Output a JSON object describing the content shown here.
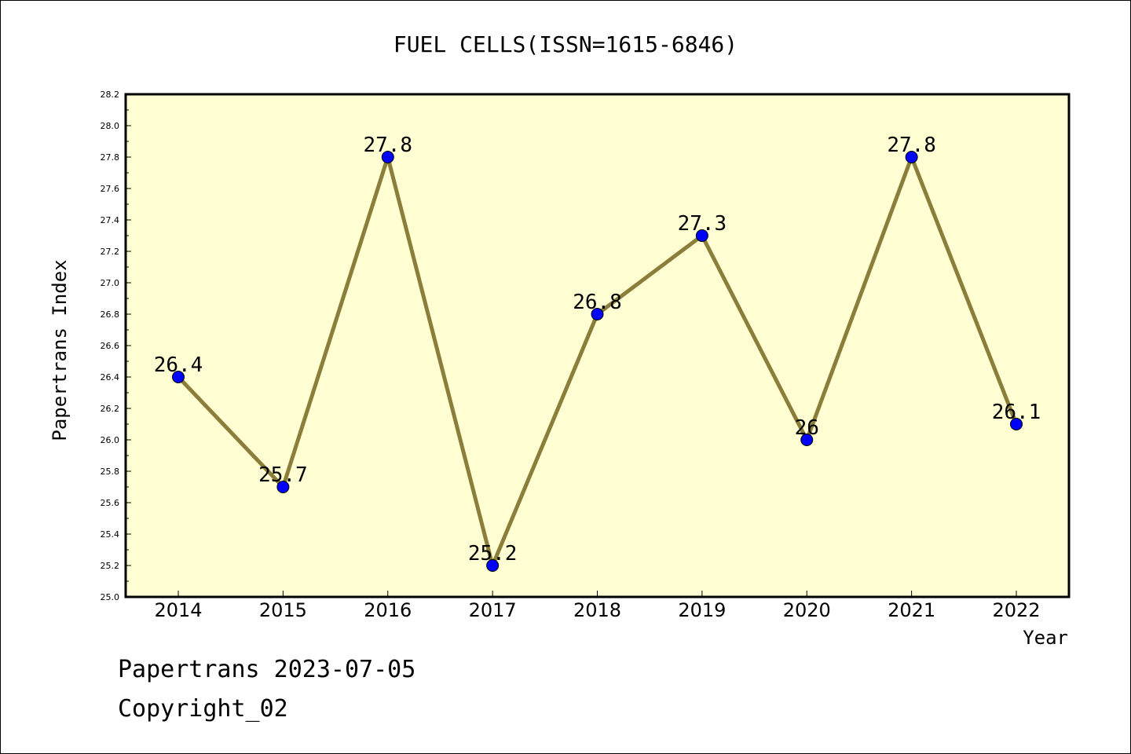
{
  "chart_data": {
    "type": "line",
    "title": "FUEL CELLS(ISSN=1615-6846)",
    "xlabel": "Year",
    "ylabel": "Papertrans Index",
    "categories": [
      "2014",
      "2015",
      "2016",
      "2017",
      "2018",
      "2019",
      "2020",
      "2021",
      "2022"
    ],
    "values": [
      26.4,
      25.7,
      27.8,
      25.2,
      26.8,
      27.3,
      26.0,
      27.8,
      26.1
    ],
    "data_labels": [
      "26.4",
      "25.7",
      "27.8",
      "25.2",
      "26.8",
      "27.3",
      "26",
      "27.8",
      "26.1"
    ],
    "ylim": [
      25.0,
      28.2
    ],
    "yticks": [
      "25.0",
      "25.2",
      "25.4",
      "25.6",
      "25.8",
      "26.0",
      "26.2",
      "26.4",
      "26.6",
      "26.8",
      "27.0",
      "27.2",
      "27.4",
      "27.6",
      "27.8",
      "28.0",
      "28.2"
    ],
    "grid": false,
    "colors": {
      "plot_background": "#ffffd3",
      "line": "#8b7d3a",
      "marker": "#0000ff"
    }
  },
  "footer": {
    "line1": "Papertrans 2023-07-05",
    "line2": "Copyright_02"
  }
}
